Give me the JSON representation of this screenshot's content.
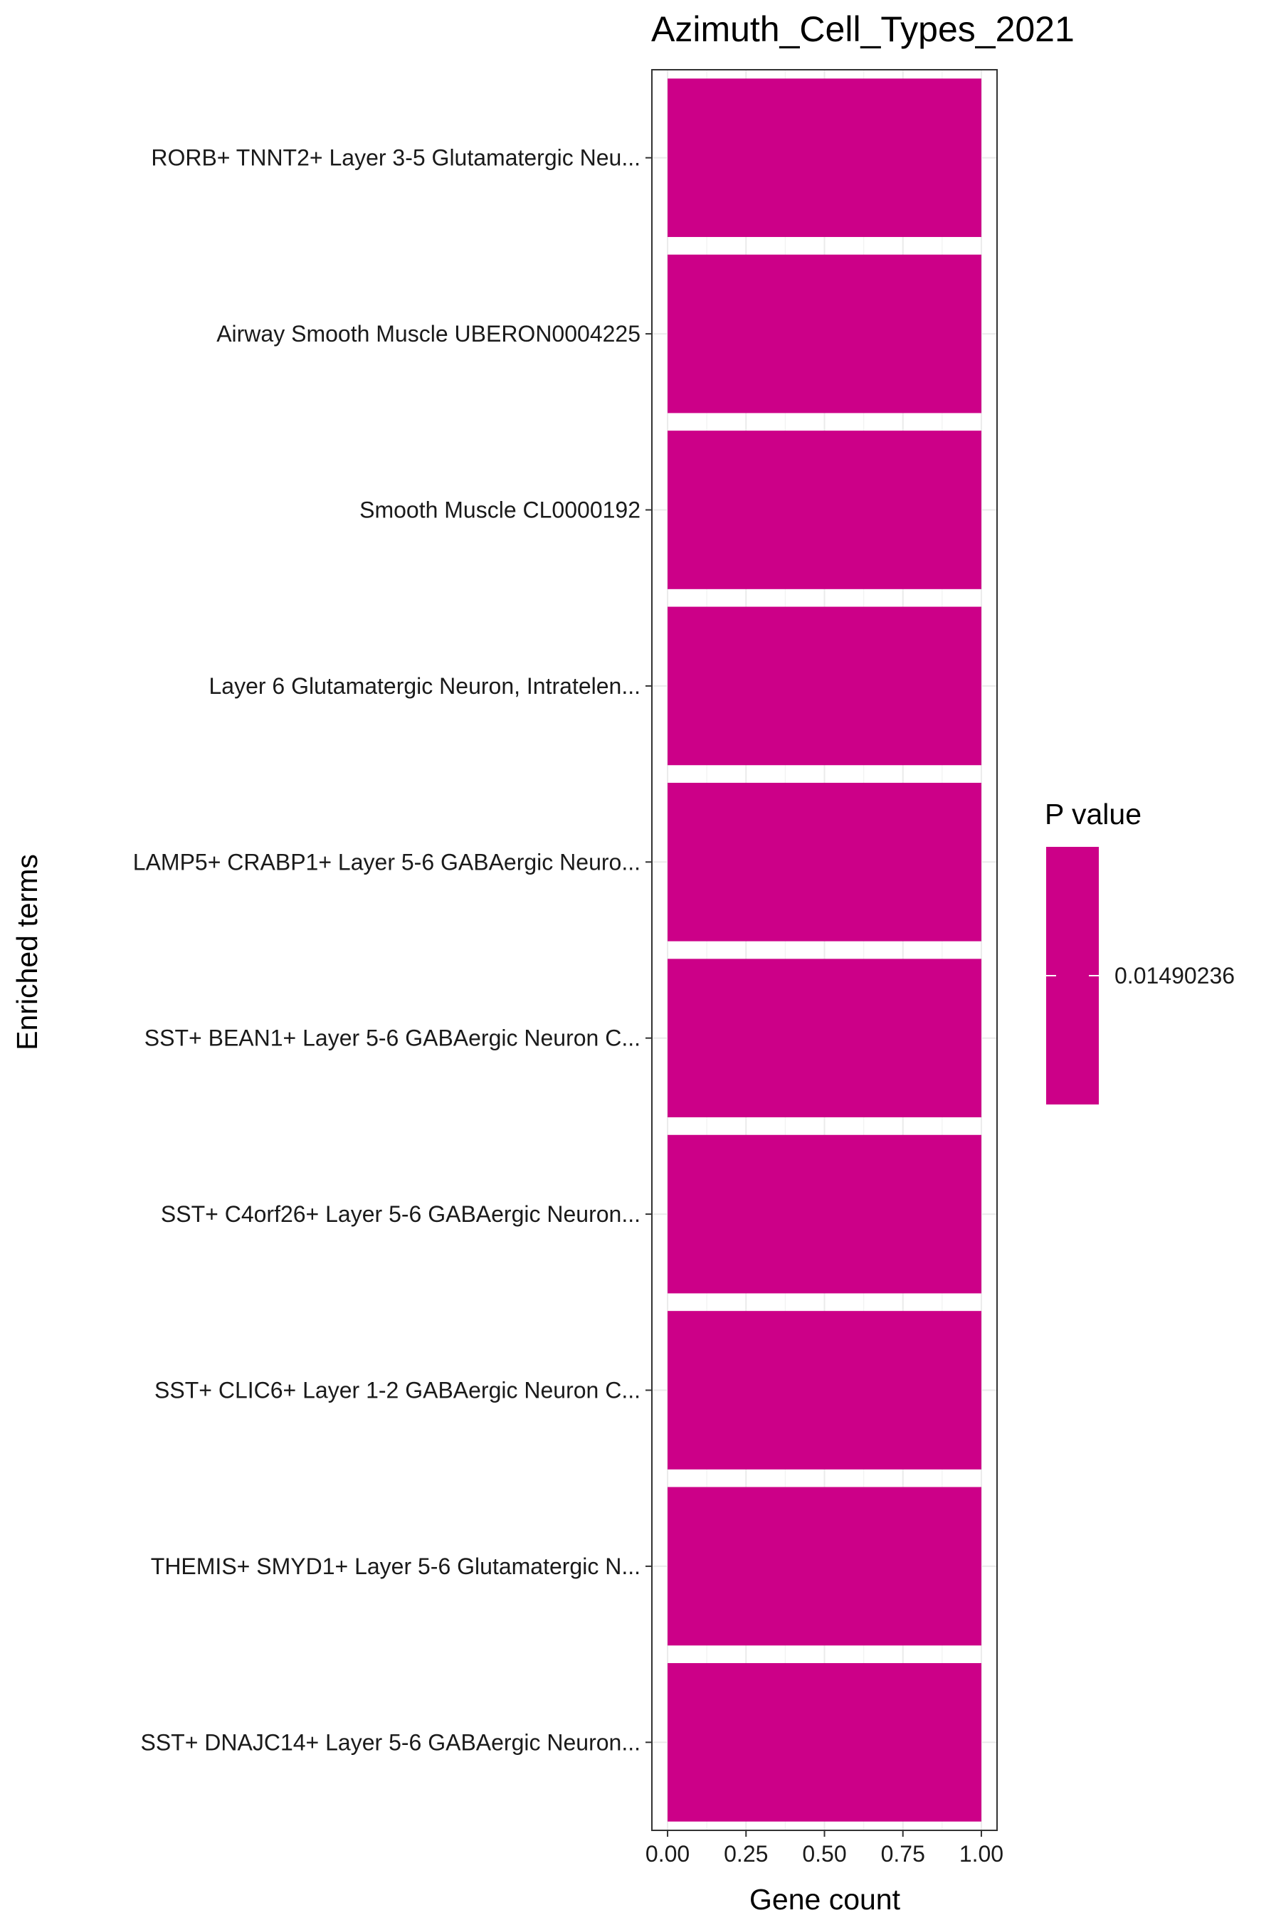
{
  "chart_data": {
    "type": "bar",
    "orientation": "horizontal",
    "title": "Azimuth_Cell_Types_2021",
    "xlabel": "Gene count",
    "ylabel": "Enriched terms",
    "categories": [
      "RORB+ TNNT2+ Layer 3-5 Glutamatergic Neu...",
      "Airway Smooth Muscle UBERON0004225",
      "Smooth Muscle CL0000192",
      "Layer 6 Glutamatergic Neuron, Intratelen...",
      "LAMP5+ CRABP1+ Layer 5-6 GABAergic Neuro...",
      "SST+ BEAN1+ Layer 5-6 GABAergic Neuron C...",
      "SST+ C4orf26+ Layer 5-6 GABAergic Neuron...",
      "SST+ CLIC6+ Layer 1-2 GABAergic Neuron C...",
      "THEMIS+ SMYD1+ Layer 5-6 Glutamatergic N...",
      "SST+ DNAJC14+ Layer 5-6 GABAergic Neuron..."
    ],
    "values": [
      1,
      1,
      1,
      1,
      1,
      1,
      1,
      1,
      1,
      1
    ],
    "xlim": [
      -0.05,
      1.05
    ],
    "xticks": [
      "0.00",
      "0.25",
      "0.50",
      "0.75",
      "1.00"
    ],
    "bar_color": "#CC0088",
    "grid": true,
    "legend": {
      "title": "P value",
      "labels": [
        "0.01490236"
      ],
      "placement": "right"
    }
  }
}
